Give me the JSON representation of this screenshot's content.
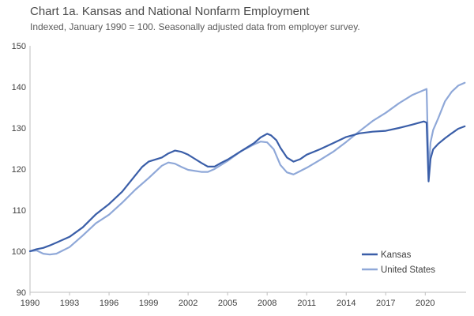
{
  "chart_data": {
    "type": "line",
    "title": "Chart 1a. Kansas and National Nonfarm Employment",
    "subtitle": "Indexed, January 1990 = 100. Seasonally adjusted data from employer survey.",
    "xlabel": "",
    "ylabel": "",
    "xlim": [
      1990,
      2023.1
    ],
    "ylim": [
      90,
      150
    ],
    "yticks": [
      90,
      100,
      110,
      120,
      130,
      140,
      150
    ],
    "xticks": [
      "1990",
      "1993",
      "1996",
      "1999",
      "2002",
      "2005",
      "2008",
      "2011",
      "2014",
      "2017",
      "2020"
    ],
    "grid": false,
    "legend_position": "bottom-right",
    "series": [
      {
        "name": "Kansas",
        "color": "#3a5ea8",
        "x": [
          1990,
          1990.5,
          1991,
          1991.5,
          1992,
          1993,
          1994,
          1995,
          1996,
          1997,
          1998,
          1998.5,
          1999,
          2000,
          2000.5,
          2001,
          2001.5,
          2002,
          2002.5,
          2003,
          2003.5,
          2004,
          2004.5,
          2005,
          2006,
          2007,
          2007.5,
          2008,
          2008.3,
          2008.7,
          2009,
          2009.5,
          2010,
          2010.5,
          2011,
          2012,
          2013,
          2014,
          2015,
          2016,
          2017,
          2018,
          2019,
          2019.9,
          2020.1,
          2020.25,
          2020.4,
          2020.6,
          2021,
          2021.5,
          2022,
          2022.5,
          2023
        ],
        "values": [
          100,
          100.5,
          100.8,
          101.4,
          102.1,
          103.5,
          105.8,
          109.0,
          111.5,
          114.5,
          118.5,
          120.5,
          121.8,
          122.8,
          123.8,
          124.5,
          124.2,
          123.5,
          122.5,
          121.5,
          120.6,
          120.6,
          121.5,
          122.3,
          124.3,
          126.3,
          127.7,
          128.6,
          128.2,
          127.0,
          125.2,
          122.8,
          121.8,
          122.4,
          123.5,
          124.8,
          126.3,
          127.8,
          128.7,
          129.1,
          129.3,
          130.0,
          130.8,
          131.6,
          131.3,
          117.0,
          122.5,
          124.8,
          126.2,
          127.5,
          128.7,
          129.8,
          130.4
        ]
      },
      {
        "name": "United States",
        "color": "#8fa8d8",
        "x": [
          1990,
          1990.5,
          1991,
          1991.5,
          1992,
          1993,
          1994,
          1995,
          1996,
          1997,
          1998,
          1999,
          2000,
          2000.5,
          2001,
          2001.5,
          2002,
          2003,
          2003.5,
          2004,
          2005,
          2006,
          2007,
          2007.5,
          2008,
          2008.5,
          2009,
          2009.5,
          2010,
          2010.5,
          2011,
          2012,
          2013,
          2014,
          2015,
          2016,
          2017,
          2018,
          2019,
          2020.1,
          2020.25,
          2020.4,
          2020.6,
          2021,
          2021.5,
          2022,
          2022.5,
          2023
        ],
        "values": [
          100,
          100.2,
          99.4,
          99.2,
          99.4,
          101.0,
          103.8,
          106.8,
          108.9,
          111.8,
          115.0,
          117.8,
          120.8,
          121.6,
          121.3,
          120.5,
          119.8,
          119.3,
          119.3,
          120.0,
          122.0,
          124.3,
          126.0,
          126.7,
          126.5,
          124.8,
          121.0,
          119.2,
          118.7,
          119.5,
          120.3,
          122.2,
          124.2,
          126.6,
          129.2,
          131.7,
          133.7,
          136.0,
          138.0,
          139.5,
          119.3,
          126.5,
          129.5,
          132.5,
          136.5,
          138.8,
          140.3,
          141.0
        ]
      }
    ]
  }
}
